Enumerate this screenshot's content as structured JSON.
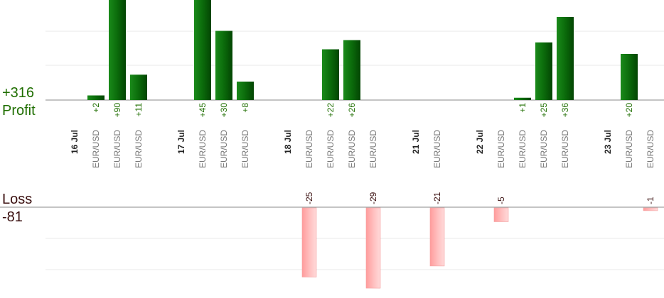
{
  "summary": {
    "profit_total": "+316",
    "profit_label": "Profit",
    "loss_label": "Loss",
    "loss_total": "-81"
  },
  "colors": {
    "profit": "#0b6b0b",
    "loss": "#ffb3b3",
    "axis": "#888888",
    "grid": "#e8e8e8",
    "profit_text": "#1f6e00",
    "loss_text": "#3a0f0f",
    "label_text": "#777777"
  },
  "chart_data": {
    "type": "bar",
    "title": "",
    "profit_axis_max_visible": 36,
    "loss_axis_min_visible": -29,
    "columns": [
      {
        "kind": "date",
        "label": "16 Jul"
      },
      {
        "kind": "trade",
        "label": "EUR/USD",
        "value": 2,
        "text": "+2"
      },
      {
        "kind": "trade",
        "label": "EUR/USD",
        "value": 90,
        "text": "+90"
      },
      {
        "kind": "trade",
        "label": "EUR/USD",
        "value": 11,
        "text": "+11"
      },
      {
        "kind": "gap"
      },
      {
        "kind": "date",
        "label": "17 Jul"
      },
      {
        "kind": "trade",
        "label": "EUR/USD",
        "value": 45,
        "text": "+45"
      },
      {
        "kind": "trade",
        "label": "EUR/USD",
        "value": 30,
        "text": "+30"
      },
      {
        "kind": "trade",
        "label": "EUR/USD",
        "value": 8,
        "text": "+8"
      },
      {
        "kind": "gap"
      },
      {
        "kind": "date",
        "label": "18 Jul"
      },
      {
        "kind": "trade",
        "label": "EUR/USD",
        "value": -25,
        "text": "-25"
      },
      {
        "kind": "trade",
        "label": "EUR/USD",
        "value": 22,
        "text": "+22"
      },
      {
        "kind": "trade",
        "label": "EUR/USD",
        "value": 26,
        "text": "+26"
      },
      {
        "kind": "trade",
        "label": "EUR/USD",
        "value": -29,
        "text": "-29"
      },
      {
        "kind": "gap"
      },
      {
        "kind": "date",
        "label": "21 Jul"
      },
      {
        "kind": "trade",
        "label": "EUR/USD",
        "value": -21,
        "text": "-21"
      },
      {
        "kind": "gap"
      },
      {
        "kind": "date",
        "label": "22 Jul"
      },
      {
        "kind": "trade",
        "label": "EUR/USD",
        "value": -5,
        "text": "-5"
      },
      {
        "kind": "trade",
        "label": "EUR/USD",
        "value": 1,
        "text": "+1"
      },
      {
        "kind": "trade",
        "label": "EUR/USD",
        "value": 25,
        "text": "+25"
      },
      {
        "kind": "trade",
        "label": "EUR/USD",
        "value": 36,
        "text": "+36"
      },
      {
        "kind": "gap"
      },
      {
        "kind": "date",
        "label": "23 Jul"
      },
      {
        "kind": "trade",
        "label": "EUR/USD",
        "value": 20,
        "text": "+20"
      },
      {
        "kind": "trade",
        "label": "EUR/USD",
        "value": -1,
        "text": "-1"
      }
    ]
  }
}
